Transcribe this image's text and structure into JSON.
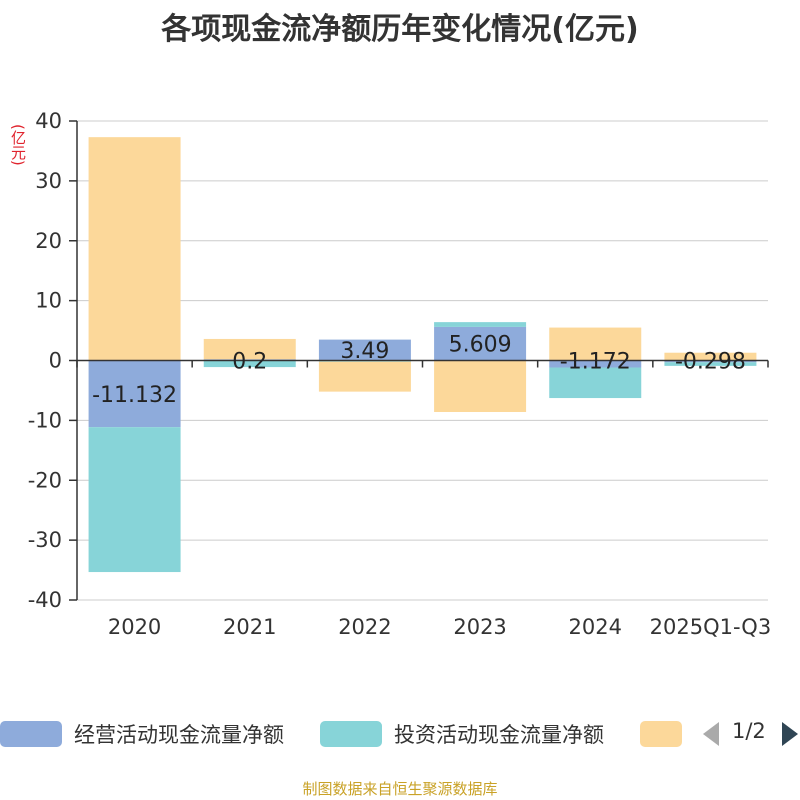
{
  "header": {
    "title": "各项现金流净额历年变化情况(亿元)",
    "unit": "(亿元)"
  },
  "colors": {
    "operating": "#8eabdb",
    "investing": "#87d4d8",
    "financing": "#fcd89a",
    "axis": "#333333",
    "grid": "#cccccc"
  },
  "chart_data": {
    "type": "bar",
    "stacked": true,
    "categories": [
      "2020",
      "2021",
      "2022",
      "2023",
      "2024",
      "2025Q1-Q3"
    ],
    "ylim": [
      -40,
      40
    ],
    "yticks": [
      -40,
      -30,
      -20,
      -10,
      0,
      10,
      20,
      30,
      40
    ],
    "series": [
      {
        "name": "经营活动现金流量净额",
        "values": [
          -11.132,
          0.2,
          3.49,
          5.609,
          -1.172,
          -0.298
        ]
      },
      {
        "name": "投资活动现金流量净额",
        "values": [
          -24.2,
          -1.1,
          -0.2,
          0.8,
          -5.1,
          -0.6
        ]
      },
      {
        "name": "",
        "values": [
          37.3,
          3.4,
          -5.0,
          -8.6,
          5.5,
          1.3
        ]
      }
    ],
    "data_labels": [
      "-11.132",
      "0.2",
      "3.49",
      "5.609",
      "-1.172",
      "-0.298"
    ]
  },
  "legend": {
    "items": [
      "经营活动现金流量净额",
      "投资活动现金流量净额"
    ],
    "page": "1/2"
  },
  "footer": "制图数据来自恒生聚源数据库"
}
